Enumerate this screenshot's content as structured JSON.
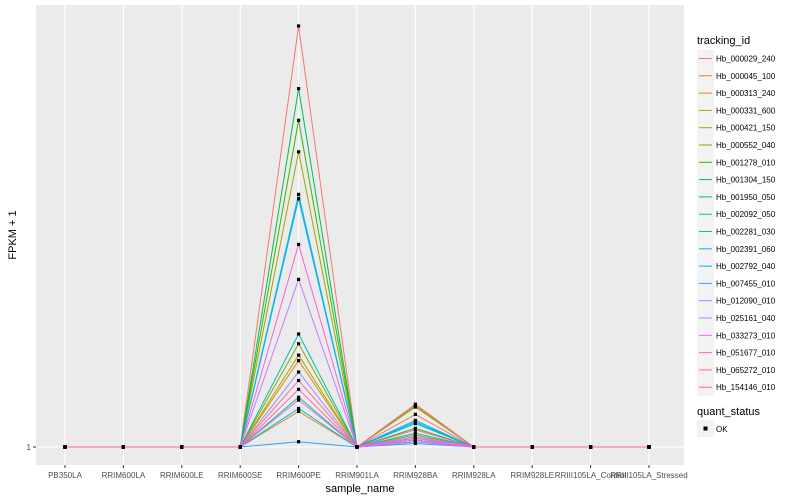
{
  "chart_data": {
    "type": "line",
    "xlabel": "sample_name",
    "ylabel": "FPKM + 1",
    "y_scale": "log10",
    "y_ticks": [
      1
    ],
    "y_tick_labels": [
      "1"
    ],
    "categories": [
      "PB350LA",
      "RRIM600LA",
      "RRIM600LE",
      "RRIM600SE",
      "RRIM600PE",
      "RRIM901LA",
      "RRIM928BA",
      "RRIM928LA",
      "RRIM928LE",
      "RRIII105LA_Control",
      "RRIII105LA_Stressed"
    ],
    "legend": {
      "title": "tracking_id",
      "quant_status_title": "quant_status",
      "quant_status_label": "OK"
    },
    "series": [
      {
        "name": "Hb_000029_240",
        "color": "#F8766D",
        "values": [
          1,
          1,
          1,
          1,
          10.5,
          1,
          1.2,
          1,
          1,
          1,
          1
        ]
      },
      {
        "name": "Hb_000045_100",
        "color": "#EA8331",
        "values": [
          1,
          1,
          1,
          1,
          1.22,
          1,
          1.05,
          1,
          1,
          1,
          1
        ]
      },
      {
        "name": "Hb_000313_240",
        "color": "#D89000",
        "values": [
          1,
          1,
          1,
          1,
          1.62,
          1,
          1.06,
          1,
          1,
          1,
          1
        ]
      },
      {
        "name": "Hb_000331_600",
        "color": "#C09B00",
        "values": [
          1,
          1,
          1,
          1,
          1.67,
          1,
          1.26,
          1,
          1,
          1,
          1
        ]
      },
      {
        "name": "Hb_000421_150",
        "color": "#A3A500",
        "values": [
          1,
          1,
          1,
          1,
          5.2,
          1,
          1.07,
          1,
          1,
          1,
          1
        ]
      },
      {
        "name": "Hb_000552_040",
        "color": "#7CAE00",
        "values": [
          1,
          1,
          1,
          1,
          1.78,
          1,
          1.25,
          1,
          1,
          1,
          1
        ]
      },
      {
        "name": "Hb_001278_010",
        "color": "#39B600",
        "values": [
          1,
          1,
          1,
          1,
          6.2,
          1,
          1.11,
          1,
          1,
          1,
          1
        ]
      },
      {
        "name": "Hb_001304_150",
        "color": "#00BB4E",
        "values": [
          1,
          1,
          1,
          1,
          7.4,
          1,
          1.04,
          1,
          1,
          1,
          1
        ]
      },
      {
        "name": "Hb_001950_050",
        "color": "#00BF7D",
        "values": [
          1,
          1,
          1,
          1,
          1.32,
          1,
          1.03,
          1,
          1,
          1,
          1
        ]
      },
      {
        "name": "Hb_002092_050",
        "color": "#00C1A3",
        "values": [
          1,
          1,
          1,
          1,
          1.88,
          1,
          1.08,
          1,
          1,
          1,
          1
        ]
      },
      {
        "name": "Hb_002281_030",
        "color": "#00BFC4",
        "values": [
          1,
          1,
          1,
          1,
          1.24,
          1,
          1.16,
          1,
          1,
          1,
          1
        ]
      },
      {
        "name": "Hb_002391_060",
        "color": "#00BAE0",
        "values": [
          1,
          1,
          1,
          1,
          4.1,
          1,
          1.15,
          1,
          1,
          1,
          1
        ]
      },
      {
        "name": "Hb_002792_040",
        "color": "#00B0F6",
        "values": [
          1,
          1,
          1,
          1,
          4.0,
          1,
          1.14,
          1,
          1,
          1,
          1
        ]
      },
      {
        "name": "Hb_007455_010",
        "color": "#35A2FF",
        "values": [
          1,
          1,
          1,
          1,
          1.03,
          1,
          1.02,
          1,
          1,
          1,
          1
        ]
      },
      {
        "name": "Hb_012090_010",
        "color": "#9590FF",
        "values": [
          1,
          1,
          1,
          1,
          1.52,
          1,
          1.05,
          1,
          1,
          1,
          1
        ]
      },
      {
        "name": "Hb_025161_040",
        "color": "#C77CFF",
        "values": [
          1,
          1,
          1,
          1,
          2.55,
          1,
          1.06,
          1,
          1,
          1,
          1
        ]
      },
      {
        "name": "Hb_033273_010",
        "color": "#E76BF3",
        "values": [
          1,
          1,
          1,
          1,
          1.3,
          1,
          1.03,
          1,
          1,
          1,
          1
        ]
      },
      {
        "name": "Hb_051677_010",
        "color": "#FA62DB",
        "values": [
          1,
          1,
          1,
          1,
          3.1,
          1,
          1.04,
          1,
          1,
          1,
          1
        ]
      },
      {
        "name": "Hb_065272_010",
        "color": "#FF62BC",
        "values": [
          1,
          1,
          1,
          1,
          1.38,
          1,
          1.1,
          1,
          1,
          1,
          1
        ]
      },
      {
        "name": "Hb_154146_010",
        "color": "#FF6C91",
        "values": [
          1,
          1,
          1,
          1,
          1.45,
          1,
          1.27,
          1,
          1,
          1,
          1
        ]
      }
    ]
  }
}
